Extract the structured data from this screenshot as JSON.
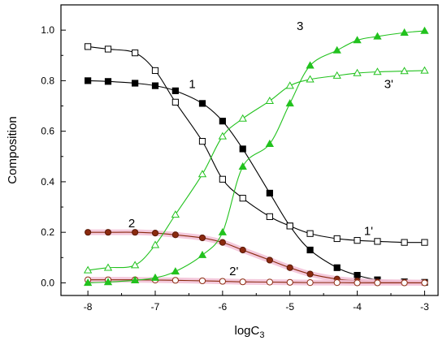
{
  "chart_data": {
    "type": "line",
    "xlabel": "logC",
    "xlabel_sub": "3",
    "ylabel": "Composition",
    "xlim": [
      -8.4,
      -2.8
    ],
    "ylim": [
      -0.05,
      1.1
    ],
    "x_ticks": [
      -8,
      -7,
      -6,
      -5,
      -4,
      -3
    ],
    "x_tick_labels": [
      "-8",
      "-7",
      "-6",
      "-5",
      "-4",
      "-3"
    ],
    "y_ticks": [
      0.0,
      0.2,
      0.4,
      0.6,
      0.8,
      1.0
    ],
    "y_tick_labels": [
      "0.0",
      "0.2",
      "0.4",
      "0.6",
      "0.8",
      "1.0"
    ],
    "grid": false,
    "series": [
      {
        "name": "1",
        "color": "#000000",
        "marker": "square-filled",
        "x": [
          -8.0,
          -7.7,
          -7.3,
          -7.0,
          -6.7,
          -6.3,
          -6.0,
          -5.7,
          -5.3,
          -5.0,
          -4.7,
          -4.3,
          -4.0,
          -3.7,
          -3.3,
          -3.0
        ],
        "y": [
          0.8,
          0.797,
          0.79,
          0.78,
          0.76,
          0.71,
          0.64,
          0.53,
          0.355,
          0.225,
          0.13,
          0.06,
          0.03,
          0.012,
          0.004,
          0.002
        ]
      },
      {
        "name": "1'",
        "color": "#000000",
        "marker": "square-open",
        "x": [
          -8.0,
          -7.7,
          -7.3,
          -7.0,
          -6.7,
          -6.3,
          -6.0,
          -5.7,
          -5.3,
          -5.0,
          -4.7,
          -4.3,
          -4.0,
          -3.7,
          -3.3,
          -3.0
        ],
        "y": [
          0.935,
          0.925,
          0.91,
          0.84,
          0.715,
          0.56,
          0.41,
          0.335,
          0.262,
          0.225,
          0.195,
          0.175,
          0.168,
          0.164,
          0.16,
          0.16
        ]
      },
      {
        "name": "2",
        "color": "#8b2a0f",
        "marker": "circle-filled",
        "x": [
          -8.0,
          -7.7,
          -7.3,
          -7.0,
          -6.7,
          -6.3,
          -6.0,
          -5.7,
          -5.3,
          -5.0,
          -4.7,
          -4.3,
          -4.0,
          -3.7,
          -3.3,
          -3.0
        ],
        "y": [
          0.2,
          0.2,
          0.2,
          0.197,
          0.19,
          0.178,
          0.16,
          0.13,
          0.09,
          0.06,
          0.035,
          0.015,
          0.008,
          0.004,
          0.002,
          0.001
        ]
      },
      {
        "name": "2'",
        "color": "#8b2a0f",
        "marker": "circle-open",
        "x": [
          -8.0,
          -7.7,
          -7.3,
          -7.0,
          -6.7,
          -6.3,
          -6.0,
          -5.7,
          -5.3,
          -5.0,
          -4.7,
          -4.3,
          -4.0,
          -3.7,
          -3.3,
          -3.0
        ],
        "y": [
          0.012,
          0.012,
          0.012,
          0.011,
          0.01,
          0.008,
          0.006,
          0.004,
          0.003,
          0.002,
          0.001,
          0.001,
          0.0,
          0.0,
          0.0,
          0.0
        ]
      },
      {
        "name": "3",
        "color": "#22c21e",
        "marker": "triangle-filled",
        "x": [
          -8.0,
          -7.7,
          -7.3,
          -7.0,
          -6.7,
          -6.3,
          -6.0,
          -5.7,
          -5.3,
          -5.0,
          -4.7,
          -4.3,
          -4.0,
          -3.7,
          -3.3,
          -3.0
        ],
        "y": [
          0.0,
          0.003,
          0.01,
          0.02,
          0.045,
          0.11,
          0.2,
          0.46,
          0.55,
          0.71,
          0.86,
          0.92,
          0.96,
          0.975,
          0.99,
          0.997
        ]
      },
      {
        "name": "3'",
        "color": "#22c21e",
        "marker": "triangle-open",
        "x": [
          -8.0,
          -7.7,
          -7.3,
          -7.0,
          -6.7,
          -6.3,
          -6.0,
          -5.7,
          -5.3,
          -5.0,
          -4.7,
          -4.3,
          -4.0,
          -3.7,
          -3.3,
          -3.0
        ],
        "y": [
          0.05,
          0.06,
          0.07,
          0.15,
          0.27,
          0.43,
          0.58,
          0.65,
          0.72,
          0.78,
          0.805,
          0.82,
          0.83,
          0.835,
          0.838,
          0.84
        ]
      }
    ],
    "annotations": [
      {
        "text": "1",
        "x": -6.5,
        "y": 0.77
      },
      {
        "text": "1'",
        "x": -3.9,
        "y": 0.19
      },
      {
        "text": "2",
        "x": -7.4,
        "y": 0.22
      },
      {
        "text": "2'",
        "x": -5.9,
        "y": 0.03
      },
      {
        "text": "3",
        "x": -4.9,
        "y": 1.0
      },
      {
        "text": "3'",
        "x": -3.6,
        "y": 0.77
      }
    ]
  }
}
